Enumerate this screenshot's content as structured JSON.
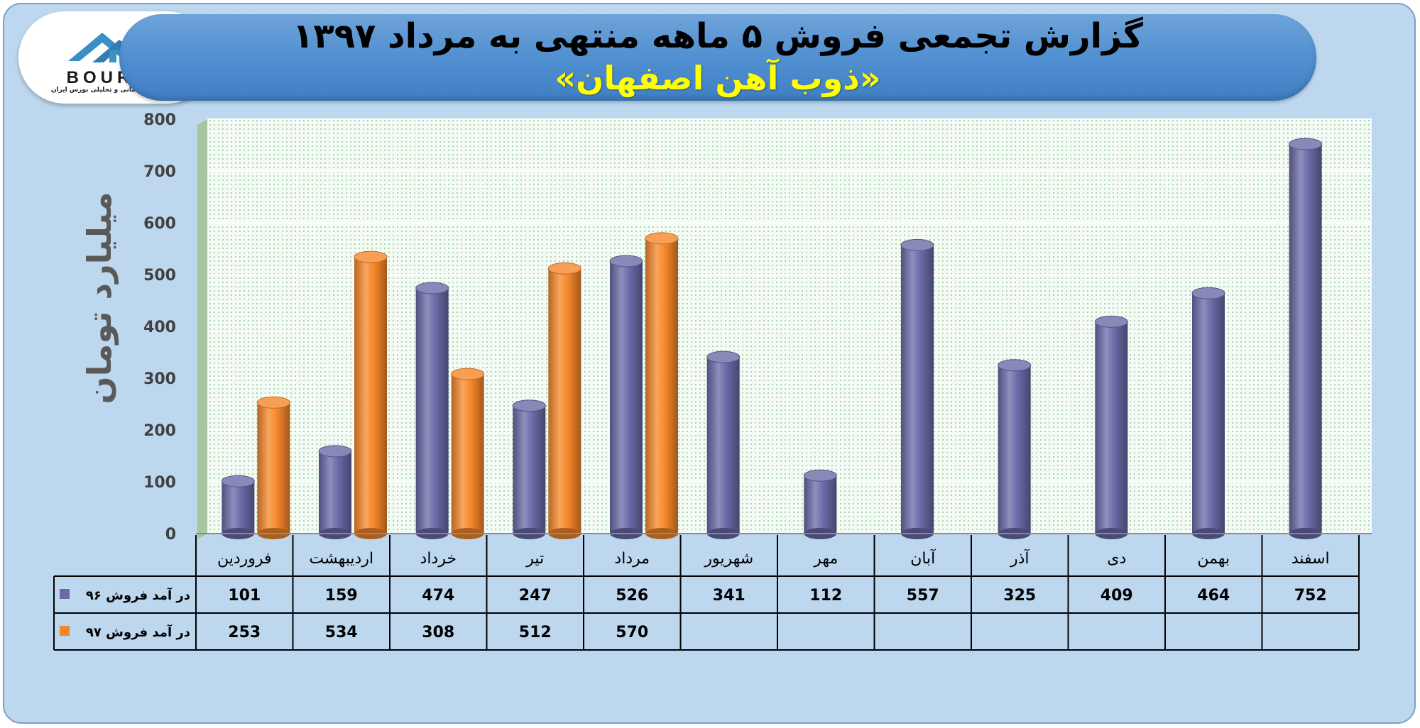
{
  "header": {
    "title": "گزارش تجمعی فروش ۵ ماهه منتهی به مرداد ۱۳۹۷",
    "subtitle": "«ذوب آهن اصفهان»"
  },
  "logo": {
    "name": "BOURSE",
    "tagline": "پایگاه اطلاع رسانی و تحلیلی بورس ایران"
  },
  "colors": {
    "series_96": "#6a6aa8",
    "series_97": "#f5872a",
    "background": "#bdd7ee",
    "banner": "#4f8ed0",
    "subtitle": "#ffff00"
  },
  "chart_data": {
    "type": "bar",
    "title": "گزارش تجمعی فروش ۵ ماهه منتهی به مرداد ۱۳۹۷",
    "subtitle": "«ذوب آهن اصفهان»",
    "ylabel": "میلیارد تومان",
    "xlabel": "",
    "ylim": [
      0,
      800
    ],
    "yticks": [
      0,
      100,
      200,
      300,
      400,
      500,
      600,
      700,
      800
    ],
    "grid": true,
    "legend": "data-table",
    "categories": [
      "فروردین",
      "اردیبهشت",
      "خرداد",
      "تیر",
      "مرداد",
      "شهریور",
      "مهر",
      "آبان",
      "آذر",
      "دی",
      "بهمن",
      "اسفند"
    ],
    "series": [
      {
        "name": "در آمد فروش ۹۶",
        "color": "#6a6aa8",
        "values": [
          101,
          159,
          474,
          247,
          526,
          341,
          112,
          557,
          325,
          409,
          464,
          752
        ]
      },
      {
        "name": "در آمد فروش ۹۷",
        "color": "#f5872a",
        "values": [
          253,
          534,
          308,
          512,
          570,
          null,
          null,
          null,
          null,
          null,
          null,
          null
        ]
      }
    ]
  }
}
